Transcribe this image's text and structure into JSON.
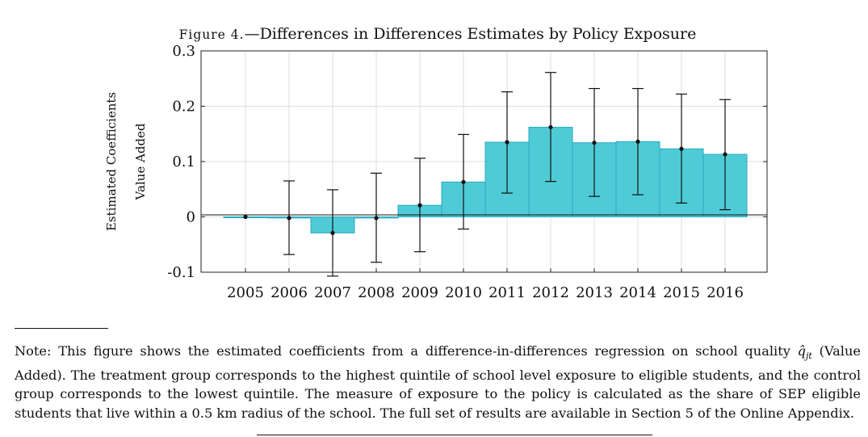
{
  "figure": {
    "title_label": "Figure 4.",
    "title_text": "—Differences in Differences Estimates by Policy Exposure"
  },
  "y_axis_label_outer": "Estimated Coefficients",
  "y_axis_label_inner": "Value Added",
  "y_tick_labels": [
    "0.3",
    "0.2",
    "0.1",
    "0",
    "-0.1"
  ],
  "chart_data": {
    "type": "bar",
    "title": "Differences in Differences Estimates by Policy Exposure",
    "xlabel": "",
    "ylabel": "Estimated Coefficients Value Added",
    "categories": [
      "2005",
      "2006",
      "2007",
      "2008",
      "2009",
      "2010",
      "2011",
      "2012",
      "2013",
      "2014",
      "2015",
      "2016"
    ],
    "values": [
      0.0,
      -0.002,
      -0.029,
      -0.002,
      0.021,
      0.063,
      0.135,
      0.162,
      0.134,
      0.136,
      0.123,
      0.113
    ],
    "ci_upper": [
      0.0,
      0.065,
      0.049,
      0.079,
      0.106,
      0.149,
      0.226,
      0.261,
      0.232,
      0.232,
      0.222,
      0.212
    ],
    "ci_lower": [
      0.0,
      -0.068,
      -0.107,
      -0.082,
      -0.063,
      -0.022,
      0.043,
      0.064,
      0.037,
      0.04,
      0.025,
      0.013
    ],
    "ylim": [
      -0.1,
      0.3
    ],
    "yticks": [
      0.3,
      0.2,
      0.1,
      0,
      -0.1
    ],
    "grid": true,
    "legend": "none",
    "colors": {
      "bar_fill": "#4ecbd6",
      "bar_edge": "#2aa9c0",
      "errorbar": "#111111",
      "grid": "#dddddd"
    }
  },
  "note": {
    "p1": "Note: This figure shows the estimated coefficients from a difference-in-differences regression on school quality",
    "qhat": "q̂",
    "qsub": "jt",
    "p2": " (Value Added). The treatment group corresponds to the highest quintile of school level exposure to eligible students, and the control group corresponds to the lowest quintile. The measure of exposure to the policy is calculated as the share of SEP eligible students that live within a 0.5 km radius of the school. The full set of results are available in Section 5 of the Online Appendix."
  }
}
